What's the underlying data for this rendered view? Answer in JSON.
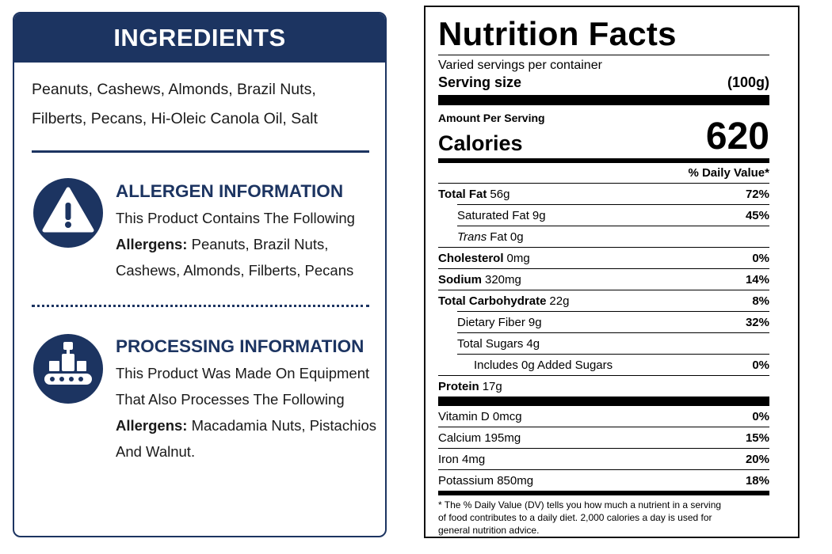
{
  "ingredients": {
    "title": "INGREDIENTS",
    "text": "Peanuts, Cashews, Almonds, Brazil Nuts, Filberts, Pecans, Hi-Oleic Canola Oil, Salt"
  },
  "allergen": {
    "title": "ALLERGEN INFORMATION",
    "intro": "This Product Contains The Following",
    "label": "Allergens:",
    "text": "Peanuts, Brazil Nuts, Cashews, Almonds, Filberts, Pecans"
  },
  "processing": {
    "title": "PROCESSING INFORMATION",
    "intro": "This Product Was Made On Equipment That Also Processes The Following",
    "label": "Allergens:",
    "text": "Macadamia Nuts, Pistachios And Walnut."
  },
  "nutrition": {
    "title": "Nutrition Facts",
    "servings": "Varied servings per container",
    "serving_size_label": "Serving size",
    "serving_size": "(100g)",
    "amount_per_serving": "Amount Per Serving",
    "calories_label": "Calories",
    "calories": 620,
    "dv_header": "% Daily Value*",
    "rows": [
      {
        "name": "Total Fat",
        "amount": "56g",
        "dv": "72%",
        "bold": true,
        "level": 0
      },
      {
        "name": "Saturated Fat",
        "amount": "9g",
        "dv": "45%",
        "bold": false,
        "level": 1
      },
      {
        "name_italic": "Trans",
        "name": "Fat",
        "amount": "0g",
        "bold": false,
        "level": 1
      },
      {
        "name": "Cholesterol",
        "amount": "0mg",
        "dv": "0%",
        "bold": true,
        "level": 0
      },
      {
        "name": "Sodium",
        "amount": "320mg",
        "dv": "14%",
        "bold": true,
        "level": 0
      },
      {
        "name": "Total Carbohydrate",
        "amount": "22g",
        "dv": "8%",
        "bold": true,
        "level": 0
      },
      {
        "name": "Dietary Fiber",
        "amount": "9g",
        "dv": "32%",
        "bold": false,
        "level": 1
      },
      {
        "name": "Total Sugars",
        "amount": "4g",
        "bold": false,
        "level": 1
      },
      {
        "name": "Includes 0g Added Sugars",
        "dv": "0%",
        "bold": false,
        "level": 2
      },
      {
        "name": "Protein",
        "amount": "17g",
        "bold": true,
        "level": 0
      }
    ],
    "vitamins": [
      {
        "name": "Vitamin D 0mcg",
        "dv": "0%"
      },
      {
        "name": "Calcium 195mg",
        "dv": "15%"
      },
      {
        "name": "Iron 4mg",
        "dv": "20%"
      },
      {
        "name": "Potassium 850mg",
        "dv": "18%"
      }
    ],
    "footnote": "* The % Daily Value (DV) tells you how much a nutrient in a serving of food contributes to a daily diet. 2,000 calories a day is used for general nutrition advice."
  }
}
